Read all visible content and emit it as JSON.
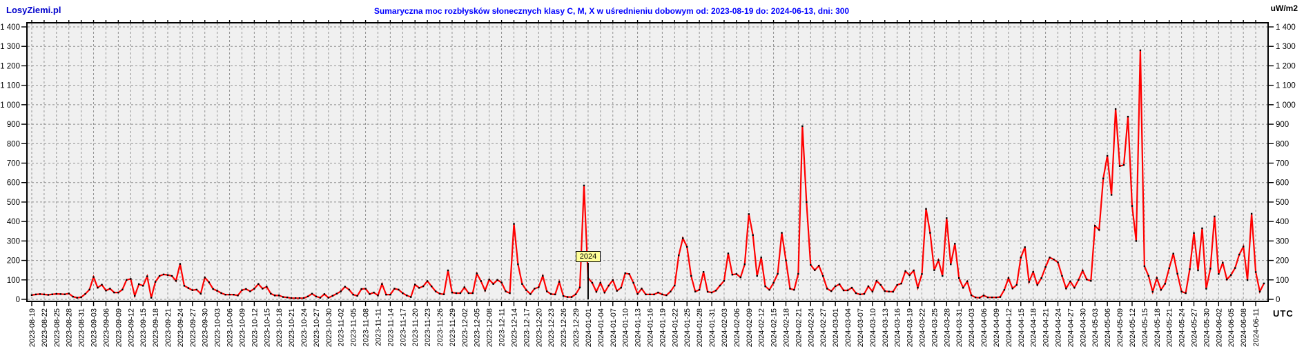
{
  "header": {
    "logo": "LosyZiemi.pl",
    "title": "Sumaryczna moc rozbłysków słonecznych klasy C, M, X w uśrednieniu dobowym od: 2023-08-19 do: 2024-06-13, dni: 300",
    "unit_label": "uW/m2"
  },
  "footer": {
    "utc_label": "UTC"
  },
  "annotation": {
    "text": "2024",
    "day_index": 135
  },
  "colors": {
    "line": "#ff0000",
    "marker": "#000000",
    "title": "#0000ff",
    "logo": "#0000cc",
    "plot_bg": "#f0f0f0",
    "grid": "#909090",
    "border": "#000000",
    "annotation_bg": "#ffff99"
  },
  "chart_data": {
    "type": "line",
    "title": "Sumaryczna moc rozbłysków słonecznych klasy C, M, X w uśrednieniu dobowym od: 2023-08-19 do: 2024-06-13, dni: 300",
    "xlabel": "UTC",
    "ylabel": "uW/m2",
    "ylim": [
      0,
      1400
    ],
    "y_tick_step": 100,
    "grid": true,
    "x_label_rotation": 90,
    "start_date": "2023-08-19",
    "end_date": "2024-06-13",
    "days": 300,
    "y_tick_labels": [
      "0",
      "100",
      "200",
      "300",
      "400",
      "500",
      "600",
      "700",
      "800",
      "900",
      "1 000",
      "1 100",
      "1 200",
      "1 300",
      "1 400"
    ],
    "x_tick_labels": [
      "2023-08-19",
      "2023-08-22",
      "2023-08-25",
      "2023-08-28",
      "2023-08-31",
      "2023-09-03",
      "2023-09-06",
      "2023-09-09",
      "2023-09-12",
      "2023-09-15",
      "2023-09-18",
      "2023-09-21",
      "2023-09-24",
      "2023-09-27",
      "2023-09-30",
      "2023-10-03",
      "2023-10-06",
      "2023-10-09",
      "2023-10-12",
      "2023-10-15",
      "2023-10-18",
      "2023-10-21",
      "2023-10-24",
      "2023-10-27",
      "2023-10-30",
      "2023-11-02",
      "2023-11-05",
      "2023-11-08",
      "2023-11-11",
      "2023-11-14",
      "2023-11-17",
      "2023-11-20",
      "2023-11-23",
      "2023-11-26",
      "2023-11-29",
      "2023-12-02",
      "2023-12-05",
      "2023-12-08",
      "2023-12-11",
      "2023-12-14",
      "2023-12-17",
      "2023-12-20",
      "2023-12-23",
      "2023-12-26",
      "2023-12-29",
      "2024-01-01",
      "2024-01-04",
      "2024-01-07",
      "2024-01-10",
      "2024-01-13",
      "2024-01-16",
      "2024-01-19",
      "2024-01-22",
      "2024-01-25",
      "2024-01-28",
      "2024-01-31",
      "2024-02-03",
      "2024-02-06",
      "2024-02-09",
      "2024-02-12",
      "2024-02-15",
      "2024-02-18",
      "2024-02-21",
      "2024-02-24",
      "2024-02-27",
      "2024-03-01",
      "2024-03-04",
      "2024-03-07",
      "2024-03-10",
      "2024-03-13",
      "2024-03-16",
      "2024-03-19",
      "2024-03-22",
      "2024-03-25",
      "2024-03-28",
      "2024-03-31",
      "2024-04-03",
      "2024-04-06",
      "2024-04-09",
      "2024-04-12",
      "2024-04-15",
      "2024-04-18",
      "2024-04-21",
      "2024-04-24",
      "2024-04-27",
      "2024-04-30",
      "2024-05-03",
      "2024-05-06",
      "2024-05-09",
      "2024-05-12",
      "2024-05-15",
      "2024-05-18",
      "2024-05-21",
      "2024-05-24",
      "2024-05-27",
      "2024-05-30",
      "2024-06-02",
      "2024-06-05",
      "2024-06-08",
      "2024-06-11"
    ],
    "values": [
      22,
      25,
      27,
      25,
      23,
      26,
      28,
      27,
      26,
      30,
      14,
      8,
      11,
      28,
      50,
      115,
      60,
      75,
      45,
      55,
      35,
      35,
      50,
      100,
      105,
      18,
      78,
      70,
      118,
      8,
      90,
      120,
      128,
      125,
      120,
      95,
      182,
      70,
      58,
      47,
      50,
      29,
      112,
      88,
      53,
      44,
      32,
      24,
      24,
      24,
      20,
      47,
      53,
      41,
      55,
      79,
      55,
      65,
      29,
      20,
      20,
      12,
      10,
      6,
      6,
      6,
      6,
      15,
      29,
      15,
      8,
      27,
      8,
      18,
      29,
      41,
      65,
      50,
      24,
      18,
      53,
      55,
      27,
      35,
      20,
      79,
      24,
      24,
      55,
      50,
      32,
      20,
      12,
      76,
      59,
      67,
      94,
      67,
      41,
      29,
      26,
      149,
      35,
      32,
      32,
      62,
      32,
      32,
      133,
      94,
      45,
      102,
      79,
      100,
      86,
      41,
      32,
      388,
      180,
      79,
      47,
      27,
      55,
      62,
      121,
      41,
      27,
      25,
      90,
      17,
      12,
      12,
      26,
      61,
      585,
      110,
      85,
      39,
      85,
      35,
      71,
      99,
      44,
      60,
      134,
      130,
      85,
      28,
      55,
      25,
      25,
      25,
      35,
      25,
      21,
      40,
      71,
      226,
      314,
      270,
      120,
      40,
      49,
      141,
      39,
      35,
      45,
      71,
      95,
      236,
      127,
      130,
      113,
      180,
      438,
      330,
      120,
      215,
      67,
      49,
      85,
      131,
      342,
      200,
      55,
      49,
      131,
      890,
      500,
      177,
      150,
      173,
      120,
      55,
      42,
      67,
      78,
      46,
      46,
      60,
      32,
      25,
      28,
      67,
      40,
      95,
      74,
      42,
      40,
      39,
      74,
      81,
      145,
      124,
      148,
      60,
      130,
      465,
      342,
      150,
      201,
      120,
      417,
      180,
      286,
      109,
      60,
      92,
      21,
      10,
      8,
      20,
      10,
      10,
      10,
      12,
      49,
      109,
      56,
      74,
      215,
      268,
      90,
      141,
      74,
      109,
      166,
      215,
      205,
      190,
      120,
      56,
      92,
      60,
      100,
      148,
      102,
      95,
      378,
      357,
      621,
      738,
      537,
      978,
      685,
      690,
      939,
      480,
      300,
      1280,
      170,
      120,
      39,
      109,
      49,
      80,
      160,
      235,
      132,
      40,
      32,
      155,
      341,
      149,
      365,
      55,
      158,
      426,
      130,
      188,
      102,
      125,
      161,
      230,
      271,
      99,
      440,
      140,
      40,
      82
    ]
  }
}
